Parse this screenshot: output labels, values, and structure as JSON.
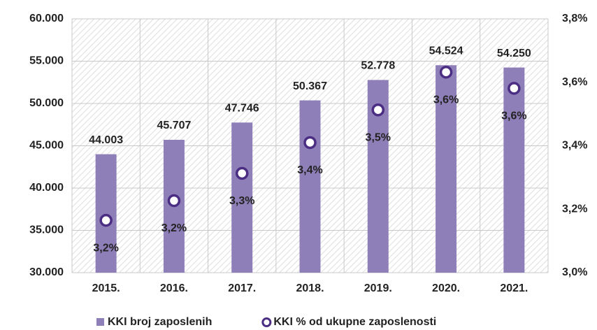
{
  "chart_data": {
    "type": "bar",
    "categories": [
      "2015.",
      "2016.",
      "2017.",
      "2018.",
      "2019.",
      "2020.",
      "2021."
    ],
    "series": [
      {
        "name": "KKI broj zaposlenih",
        "type": "bar",
        "color": "#8f7fb8",
        "values": [
          44003,
          45707,
          47746,
          50367,
          52778,
          54524,
          54250
        ],
        "value_labels": [
          "44.003",
          "45.707",
          "47.746",
          "50.367",
          "52.778",
          "54.524",
          "54.250"
        ]
      },
      {
        "name": "KKI % od ukupne zaposlenosti",
        "type": "scatter",
        "axis": "y2",
        "color": "#4b2e83",
        "values": [
          3.165,
          3.227,
          3.313,
          3.41,
          3.513,
          3.632,
          3.581
        ],
        "value_labels": [
          "3,2%",
          "3,2%",
          "3,3%",
          "3,4%",
          "3,5%",
          "3,6%",
          "3,6%"
        ]
      }
    ],
    "ylim": [
      30000,
      60000
    ],
    "yticks": [
      {
        "value": 30000,
        "label": "30.000"
      },
      {
        "value": 35000,
        "label": "35.000"
      },
      {
        "value": 40000,
        "label": "40.000"
      },
      {
        "value": 45000,
        "label": "45.000"
      },
      {
        "value": 50000,
        "label": "50.000"
      },
      {
        "value": 55000,
        "label": "55.000"
      },
      {
        "value": 60000,
        "label": "60.000"
      }
    ],
    "y2lim": [
      3.0,
      3.8
    ],
    "y2ticks": [
      {
        "value": 3.0,
        "label": "3,0%"
      },
      {
        "value": 3.2,
        "label": "3,2%"
      },
      {
        "value": 3.4,
        "label": "3,4%"
      },
      {
        "value": 3.6,
        "label": "3,6%"
      },
      {
        "value": 3.8,
        "label": "3,8%"
      }
    ],
    "grid": true,
    "legend": "bottom"
  }
}
